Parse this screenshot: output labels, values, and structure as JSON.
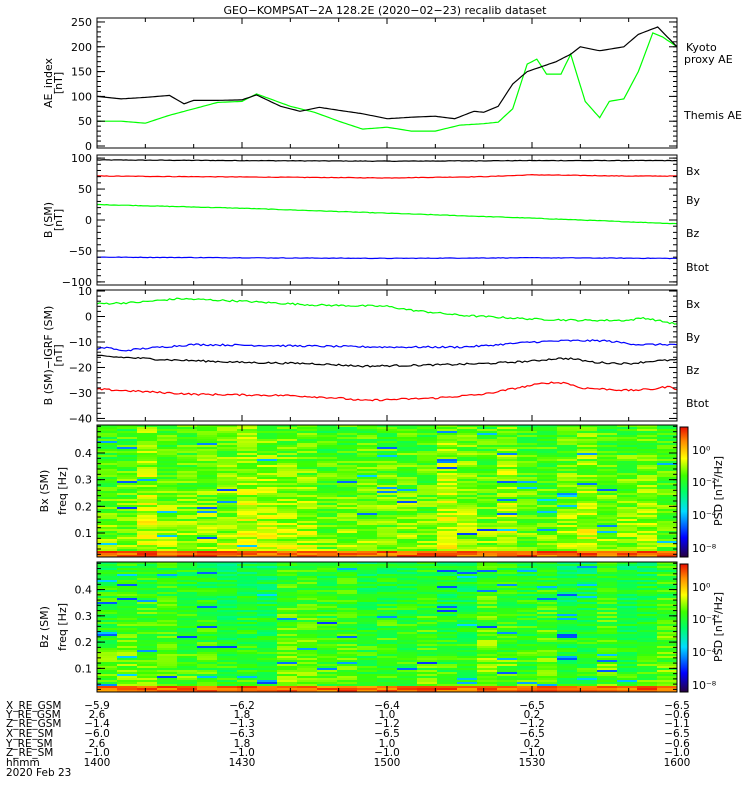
{
  "title": "GEO−KOMPSAT−2A 128.2E (2020−02−23) recalib dataset",
  "time_axis": {
    "unit": "minutes since 14:00",
    "range": [
      0,
      120
    ],
    "major_every": 30,
    "minor_every": 10
  },
  "colors": {
    "black": "#000000",
    "green": "#00ff00",
    "red": "#ff0000",
    "blue": "#0000ff"
  },
  "chart_data": [
    {
      "type": "line",
      "ylabel": "AE_index",
      "yunit": "[nT]",
      "ylim": [
        -4,
        258
      ],
      "yticks": [
        0,
        50,
        100,
        150,
        200,
        250
      ],
      "series": [
        {
          "name": "Kyoto",
          "name2": "proxy AE",
          "color": "#00ff00",
          "x": [
            0,
            5,
            10,
            15,
            20,
            25,
            30,
            33,
            40,
            45,
            50,
            55,
            60,
            65,
            70,
            75,
            80,
            83,
            86,
            89,
            91,
            93,
            96,
            98,
            101,
            104,
            106,
            109,
            112,
            115,
            117,
            120
          ],
          "y": [
            50,
            50,
            46,
            62,
            75,
            88,
            90,
            105,
            80,
            68,
            50,
            34,
            38,
            30,
            30,
            42,
            45,
            48,
            75,
            165,
            175,
            145,
            145,
            185,
            90,
            57,
            90,
            95,
            150,
            228,
            220,
            200
          ]
        },
        {
          "name": "Themis AE",
          "color": "#000000",
          "x": [
            0,
            5,
            10,
            15,
            18,
            20,
            25,
            30,
            33,
            38,
            42,
            46,
            50,
            55,
            60,
            65,
            70,
            74,
            78,
            80,
            83,
            86,
            89,
            92,
            95,
            98,
            100,
            104,
            109,
            112,
            116,
            120
          ],
          "y": [
            100,
            95,
            98,
            102,
            85,
            92,
            92,
            93,
            103,
            80,
            70,
            78,
            72,
            65,
            55,
            58,
            60,
            55,
            70,
            68,
            80,
            125,
            150,
            160,
            170,
            185,
            200,
            192,
            200,
            225,
            240,
            200
          ]
        }
      ]
    },
    {
      "type": "line",
      "ylabel": "B (SM)",
      "yunit": "[nT]",
      "ylim": [
        -105,
        105
      ],
      "yticks": [
        -100,
        -50,
        0,
        50,
        100
      ],
      "legend": [
        "Bx",
        "By",
        "Bz",
        "Btot"
      ],
      "series": [
        {
          "name": "Btot",
          "color": "#000000",
          "x": [
            0,
            30,
            60,
            90,
            120
          ],
          "y": [
            97,
            96,
            95,
            96,
            96
          ]
        },
        {
          "name": "Bz",
          "color": "#ff0000",
          "x": [
            0,
            20,
            40,
            60,
            80,
            90,
            100,
            110,
            120
          ],
          "y": [
            71,
            70,
            69,
            68,
            70,
            73,
            72,
            71,
            71
          ]
        },
        {
          "name": "By",
          "color": "#00ff00",
          "x": [
            0,
            30,
            60,
            90,
            120
          ],
          "y": [
            25,
            19,
            11,
            3,
            -6
          ]
        },
        {
          "name": "Bx",
          "color": "#0000ff",
          "x": [
            0,
            30,
            60,
            90,
            120
          ],
          "y": [
            -60,
            -61,
            -62,
            -61,
            -62
          ]
        }
      ]
    },
    {
      "type": "line",
      "ylabel": "B (SM)−IGRF (SM)",
      "yunit": "[nT]",
      "ylim": [
        -41,
        10.4
      ],
      "yticks": [
        -40,
        -30,
        -20,
        -10,
        0,
        10
      ],
      "legend": [
        "Bx",
        "By",
        "Bz",
        "Btot"
      ],
      "series": [
        {
          "name": "By",
          "color": "#00ff00",
          "x": [
            0,
            8,
            17,
            30,
            45,
            60,
            65,
            75,
            90,
            100,
            110,
            113,
            120
          ],
          "y": [
            5,
            5.5,
            7,
            6,
            4.5,
            4,
            2.5,
            0.5,
            -1,
            -1.5,
            -1.5,
            -0.5,
            -3
          ]
        },
        {
          "name": "Bx",
          "color": "#0000ff",
          "x": [
            0,
            2,
            5,
            10,
            20,
            40,
            60,
            75,
            80,
            90,
            97,
            105,
            112,
            120
          ],
          "y": [
            -13,
            -12,
            -13.5,
            -12.5,
            -11,
            -11.5,
            -12,
            -12,
            -11.5,
            -10,
            -9.5,
            -9.5,
            -11,
            -11
          ]
        },
        {
          "name": "Btot",
          "color": "#000000",
          "x": [
            0,
            5,
            15,
            30,
            45,
            55,
            70,
            80,
            90,
            95,
            98,
            103,
            110,
            115,
            120
          ],
          "y": [
            -15.5,
            -16,
            -17,
            -18,
            -18.5,
            -19.5,
            -19,
            -18.5,
            -17.5,
            -16.5,
            -16.5,
            -18,
            -18.5,
            -17.5,
            -17
          ]
        },
        {
          "name": "Bz",
          "color": "#ff0000",
          "x": [
            0,
            10,
            20,
            40,
            50,
            55,
            62,
            70,
            80,
            87,
            93,
            97,
            100,
            110,
            115,
            118,
            120
          ],
          "y": [
            -28.5,
            -29.5,
            -30.5,
            -31,
            -32,
            -33,
            -32.5,
            -32,
            -30.5,
            -28,
            -26,
            -26,
            -28,
            -29,
            -28.5,
            -27.5,
            -28.5
          ]
        }
      ]
    },
    {
      "type": "heatmap",
      "ylabel": "Bx (SM)",
      "yunit": "freq [Hz]",
      "ylim": [
        0.01,
        0.505
      ],
      "yticks": [
        0.1,
        0.2,
        0.3,
        0.4
      ],
      "colorbar": {
        "label": "PSD [nT²/Hz]",
        "ticks": [
          "10⁰",
          "10⁻²",
          "10⁻⁴",
          "10⁻⁸"
        ]
      },
      "note": "PSD mostly 1e-3..1e-1 (green/yellow), higher (red/orange) near 0.01 Hz"
    },
    {
      "type": "heatmap",
      "ylabel": "Bz (SM)",
      "yunit": "freq [Hz]",
      "ylim": [
        0.01,
        0.505
      ],
      "yticks": [
        0.1,
        0.2,
        0.3,
        0.4
      ],
      "colorbar": {
        "label": "PSD [nT²/Hz]",
        "ticks": [
          "10⁰",
          "10⁻²",
          "10⁻⁴",
          "10⁻⁸"
        ]
      },
      "note": "PSD mostly 1e-4..1e-2 (cyan/green), higher (red/orange) near 0.01 Hz"
    }
  ],
  "ephemeris": {
    "labels": [
      "X_RE_GSM",
      "Y_RE_GSM",
      "Z_RE_GSM",
      "X_RE_SM",
      "Y_RE_SM",
      "Z_RE_SM",
      "hhmm"
    ],
    "columns": [
      [
        "−5.9",
        "2.6",
        "−1.4",
        "−6.0",
        "2.6",
        "−1.0",
        "1400"
      ],
      [
        "−6.2",
        "1.8",
        "−1.3",
        "−6.3",
        "1.8",
        "−1.0",
        "1430"
      ],
      [
        "−6.4",
        "1.0",
        "−1.2",
        "−6.5",
        "1.0",
        "−1.0",
        "1500"
      ],
      [
        "−6.5",
        "0.2",
        "−1.2",
        "−6.5",
        "0.2",
        "−1.0",
        "1530"
      ],
      [
        "−6.5",
        "−0.6",
        "−1.1",
        "−6.5",
        "−0.6",
        "−1.0",
        "1600"
      ]
    ],
    "date": "2020 Feb 23"
  }
}
